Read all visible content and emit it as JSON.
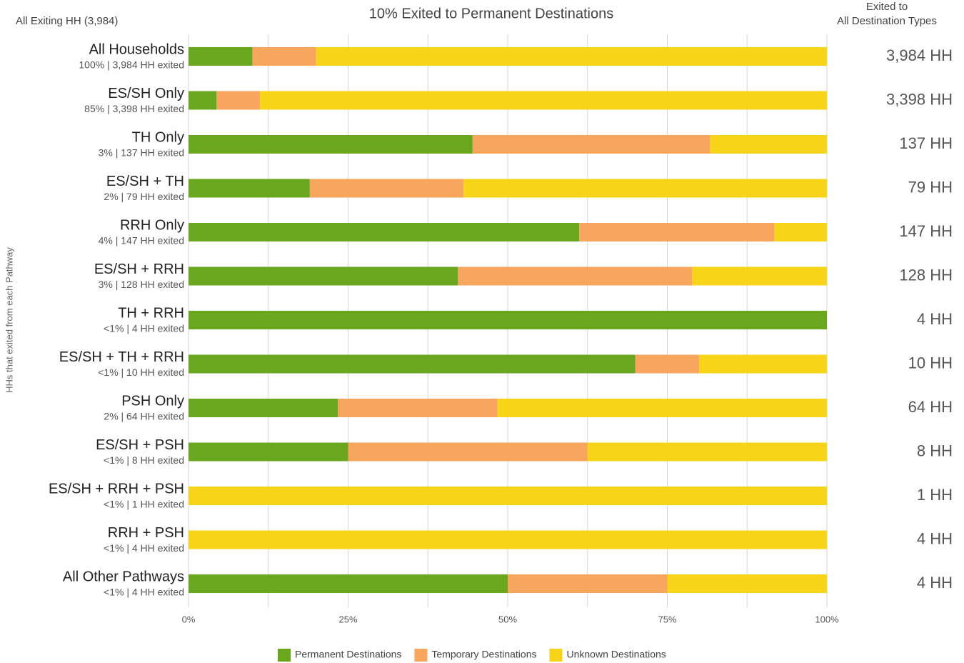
{
  "chart_data": {
    "type": "bar",
    "orientation": "horizontal",
    "stacked": true,
    "title": "10% Exited to Permanent Destinations",
    "subtitle": "All Exiting HH (3,984)",
    "right_header": [
      "Exited to",
      "All Destination Types"
    ],
    "ylabel": "HHs that exited from each Pathway",
    "categories": [
      "All Households",
      "ES/SH Only",
      "TH Only",
      "ES/SH + TH",
      "RRH Only",
      "ES/SH + RRH",
      "TH + RRH",
      "ES/SH + TH + RRH",
      "PSH Only",
      "ES/SH + PSH",
      "ES/SH + RRH + PSH",
      "RRH + PSH",
      "All Other Pathways"
    ],
    "category_notes": [
      "100% | 3,984 HH exited",
      "85% | 3,398 HH exited",
      "3% | 137 HH exited",
      "2% | 79 HH exited",
      "4% | 147 HH exited",
      "3% | 128 HH exited",
      "<1% | 4 HH exited",
      "<1% | 10 HH exited",
      "2% | 64 HH exited",
      "<1% | 8 HH exited",
      "<1% | 1 HH exited",
      "<1% | 4 HH exited",
      "<1% | 4 HH exited"
    ],
    "right_labels": [
      "3,984 HH",
      "3,398 HH",
      "137 HH",
      "79 HH",
      "147 HH",
      "128 HH",
      "4 HH",
      "10 HH",
      "64 HH",
      "8 HH",
      "1 HH",
      "4 HH",
      "4 HH"
    ],
    "series": [
      {
        "name": "Permanent Destinations",
        "color": "#6aa61e",
        "values": [
          10,
          4.4,
          44.5,
          19.0,
          61.2,
          42.2,
          100,
          70,
          23.4,
          25,
          0,
          0,
          50
        ]
      },
      {
        "name": "Temporary Destinations",
        "color": "#f8a65e",
        "values": [
          10,
          6.8,
          37.2,
          24.1,
          30.6,
          36.7,
          0,
          10,
          25,
          37.5,
          0,
          0,
          25
        ]
      },
      {
        "name": "Unknown Destinations",
        "color": "#f7d417",
        "values": [
          80,
          88.8,
          18.3,
          56.9,
          8.2,
          21.1,
          0,
          20,
          51.6,
          37.5,
          100,
          100,
          25
        ]
      }
    ],
    "xlim": [
      0,
      100
    ],
    "xticks": [
      {
        "value": 0,
        "label": "0%"
      },
      {
        "value": 25,
        "label": "25%"
      },
      {
        "value": 50,
        "label": "50%"
      },
      {
        "value": 75,
        "label": "75%"
      },
      {
        "value": 100,
        "label": "100%"
      }
    ],
    "minor_xticks": [
      12.5,
      37.5,
      62.5,
      87.5
    ],
    "grid": true,
    "legend": "bottom"
  }
}
